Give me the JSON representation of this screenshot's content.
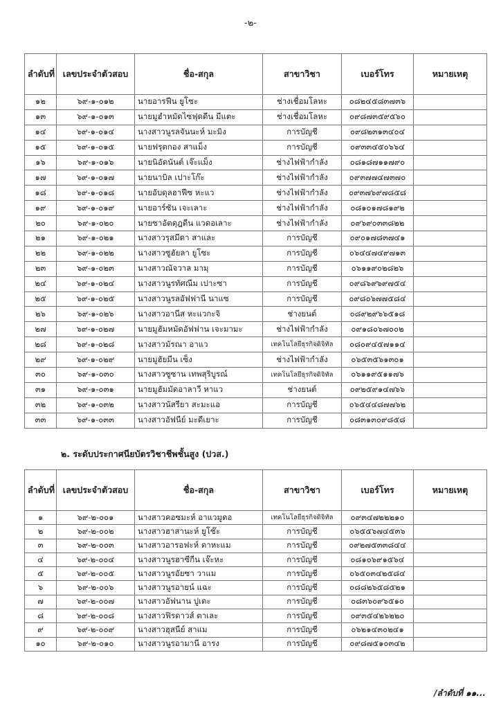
{
  "page_number": "-๒-",
  "headers": {
    "no": "ลำดับที่",
    "exam_id": "เลขประจำตัวสอบ",
    "name": "ชื่อ-สกุล",
    "major": "สาขาวิชา",
    "phone": "เบอร์โทร",
    "remark": "หมายเหตุ"
  },
  "table1": {
    "rows": [
      {
        "no": "๑๒",
        "id": "๖๙-๑-๐๑๒",
        "name": "นายอารฟีน  ยูโซะ",
        "major": "ช่างเชื่อมโลหะ",
        "phone": "๐๘๒๔๕๘๓๗๓๖",
        "remark": ""
      },
      {
        "no": "๑๓",
        "id": "๖๙-๑-๐๑๓",
        "name": "นายมูฮำหมัดไซฟุดดีน  มีแตะ",
        "major": "ช่างเชื่อมโลหะ",
        "phone": "๐๙๘๗๓๕๙๕๖๐",
        "remark": ""
      },
      {
        "no": "๑๔",
        "id": "๖๙-๑-๐๑๔",
        "name": "นางสาวนูรลจันนะห์  มะมิง",
        "major": "การบัญชี",
        "phone": "๐๙๘๒๓๑๓๔๐๔",
        "remark": ""
      },
      {
        "no": "๑๕",
        "id": "๖๙-๑-๐๑๕",
        "name": "นายฟรุตกอง  สาแม็ง",
        "major": "การบัญชี",
        "phone": "๐๙๓๓๔๕๐๖๖๔",
        "remark": ""
      },
      {
        "no": "๑๖",
        "id": "๖๙-๑-๐๑๖",
        "name": "นายนิอัดนันต์  เจ๊ะแม็ง",
        "major": "ช่างไฟฟ้ากำลัง",
        "phone": "๐๘๑๘๗๑๑๗๙๐",
        "remark": ""
      },
      {
        "no": "๑๗",
        "id": "๖๙-๑-๐๑๗",
        "name": "นายนาบิล  เปาะโก๊ะ",
        "major": "ช่างไฟฟ้ากำลัง",
        "phone": "๐๙๓๗๗๔๗๓๗๐",
        "remark": ""
      },
      {
        "no": "๑๘",
        "id": "๖๙-๑-๐๑๘",
        "name": "นายอับดุลฮาฟีซ  หะแว",
        "major": "ช่างไฟฟ้ากำลัง",
        "phone": "๐๙๓๗๖๙๗๘๕๘",
        "remark": ""
      },
      {
        "no": "๑๙",
        "id": "๖๙-๑-๐๑๙",
        "name": "นายอาร์ซัน  เจะเลาะ",
        "major": "ช่างไฟฟ้ากำลัง",
        "phone": "๐๘๑๐๑๗๘๑๙๒",
        "remark": ""
      },
      {
        "no": "๒๐",
        "id": "๖๙-๑-๐๒๐",
        "name": "นายซาอัตดุฎดีน  แวดอเลาะ",
        "major": "ช่างไฟฟ้ากำลัง",
        "phone": "๐๙๖๙๐๓๓๘๒๒",
        "remark": ""
      },
      {
        "no": "๒๑",
        "id": "๖๙-๑-๐๒๑",
        "name": "นางสาวรุสมีดา  สาและ",
        "major": "การบัญชี",
        "phone": "๐๙๐๑๗๘๓๗๔๑",
        "remark": ""
      },
      {
        "no": "๒๒",
        "id": "๖๙-๑-๐๒๒",
        "name": "นางสาวซูฮัยลา  ยูโซะ",
        "major": "การบัญชี",
        "phone": "๐๖๔๔๗๔๙๗๑๓",
        "remark": ""
      },
      {
        "no": "๒๓",
        "id": "๖๙-๑-๐๒๓",
        "name": "นางสาวณัจวาล  มามุ",
        "major": "การบัญชี",
        "phone": "๐๖๑๑๙๐๒๘๒๖",
        "remark": ""
      },
      {
        "no": "๒๔",
        "id": "๖๙-๑-๐๒๔",
        "name": "นางสาวนูรทัศณีม  เปาะซา",
        "major": "การบัญชี",
        "phone": "๐๙๘๖๙๖๙๗๕๔",
        "remark": ""
      },
      {
        "no": "๒๕",
        "id": "๖๙-๑-๐๒๕",
        "name": "นางสาวนูรลอัฟฟานี  นาแซ",
        "major": "การบัญชี",
        "phone": "๐๙๘๐๖๗๗๕๘๔",
        "remark": ""
      },
      {
        "no": "๒๖",
        "id": "๖๙-๑-๐๒๖",
        "name": "นางสาวอานีส  หะแวกะจิ",
        "major": "ช่างยนต์",
        "phone": "๐๘๙๒๙๖๖๕๑๘",
        "remark": ""
      },
      {
        "no": "๒๗",
        "id": "๖๙-๑-๐๒๗",
        "name": "นายมูฮัมหมัดอัฟฟาน  เจะมามะ",
        "major": "ช่างไฟฟ้ากำลัง",
        "phone": "๐๙๑๘๐๖๗๐๐๒",
        "remark": ""
      },
      {
        "no": "๒๘",
        "id": "๖๙-๑-๐๒๘",
        "name": "นางสาวมัรณา  อาแว",
        "major": "เทคโนโลยีธุรกิจดิจิทัล",
        "phone": "๐๘๐๙๔๕๗๑๑๔",
        "remark": ""
      },
      {
        "no": "๒๙",
        "id": "๖๙-๑-๐๒๙",
        "name": "นายมูฮัยมีน  เซ็ง",
        "major": "ช่างไฟฟ้ากำลัง",
        "phone": "๐๖๕๓๕๖๑๓๐๑",
        "remark": ""
      },
      {
        "no": "๓๐",
        "id": "๖๙-๑-๐๓๐",
        "name": "นางสาวซูซาน  เทพสุริบูรณ์",
        "major": "เทคโนโลยีธุรกิจดิจิทัล",
        "phone": "๐๖๑๑๙๕๑๑๗๖",
        "remark": ""
      },
      {
        "no": "๓๑",
        "id": "๖๙-๑-๐๓๑",
        "name": "นายมูฮัมมัดอาลาวี  หาแว",
        "major": "ช่างยนต์",
        "phone": "๐๙๒๕๙๑๔๗๖๖",
        "remark": ""
      },
      {
        "no": "๓๒",
        "id": "๖๙-๑-๐๓๒",
        "name": "นางสาวนัสรียา  สะมะแอ",
        "major": "การบัญชี",
        "phone": "๐๖๕๔๔๘๗๗๖๒",
        "remark": ""
      },
      {
        "no": "๓๓",
        "id": "๖๙-๑-๐๓๓",
        "name": "นางสาวอัฟนีย์  มะดีเยาะ",
        "major": "การบัญชี",
        "phone": "๐๘๓๑๓๐๙๘๕๘",
        "remark": ""
      }
    ]
  },
  "section2_title": "๒.  ระดับประกาศนียบัตรวิชาชีพชั้นสูง (ปวส.)",
  "table2": {
    "rows": [
      {
        "no": "๑",
        "id": "๖๙-๒-๐๐๑",
        "name": "นางสาวคอซมะห์  อาแวมูดอ",
        "major": "เทคโนโลยีธุรกิจดิจิทัล",
        "phone": "๐๙๓๔๗๒๒๒๑๐",
        "remark": ""
      },
      {
        "no": "๒",
        "id": "๖๙-๒-๐๐๒",
        "name": "นางสาวฮาสานะห์  ยูโซ๊ะ",
        "major": "การบัญชี",
        "phone": "๐๖๕๕๖๗๔๕๓๖",
        "remark": ""
      },
      {
        "no": "๓",
        "id": "๖๙-๒-๐๐๓",
        "name": "นางสาวอารอฟะห์  ดาหะแม",
        "major": "การบัญชี",
        "phone": "๐๙๒๗๕๓๓๘๔๔",
        "remark": ""
      },
      {
        "no": "๔",
        "id": "๖๙-๒-๐๐๔",
        "name": "นางสาวนูรฮาซีกีน  เจ๊ะหะ",
        "major": "การบัญชี",
        "phone": "๐๘๑๐๖๙๑๕๖๔",
        "remark": ""
      },
      {
        "no": "๕",
        "id": "๖๙-๒-๐๐๕",
        "name": "นางสาวนูรอัยซา  วาแม",
        "major": "การบัญชี",
        "phone": "๐๖๕๐๓๔๒๕๘๔",
        "remark": ""
      },
      {
        "no": "๖",
        "id": "๖๙-๒-๐๐๖",
        "name": "นางสาวนูรอายน์  แฉะ",
        "major": "การบัญชี",
        "phone": "๐๘๘๒๖๕๘๕๒๑",
        "remark": ""
      },
      {
        "no": "๗",
        "id": "๖๙-๒-๐๐๗",
        "name": "นางสาวอัฟนาน  ปูเตะ",
        "major": "การบัญชี",
        "phone": "๐๘๓๖๐๙๖๕๑๐",
        "remark": ""
      },
      {
        "no": "๘",
        "id": "๖๙-๒-๐๐๘",
        "name": "นางสาวฟิรดาวส์  ตาเละ",
        "major": "การบัญชี",
        "phone": "๐๙๓๕๔๒๖๒๒๐",
        "remark": ""
      },
      {
        "no": "๙",
        "id": "๖๙-๒-๐๐๙",
        "name": "นางสาวฮุสนีย์  สาแม",
        "major": "การบัญชี",
        "phone": "๐๖๒๑๔๓๐๒๔๑",
        "remark": ""
      },
      {
        "no": "๑๐",
        "id": "๖๙-๒-๐๑๐",
        "name": "นางสาวนูรอามานี  อารง",
        "major": "การบัญชี",
        "phone": "๐๙๘๗๕๑๐๓๔๒",
        "remark": ""
      }
    ]
  },
  "footer_continuation": "/ลำดับที่ ๑๑..."
}
